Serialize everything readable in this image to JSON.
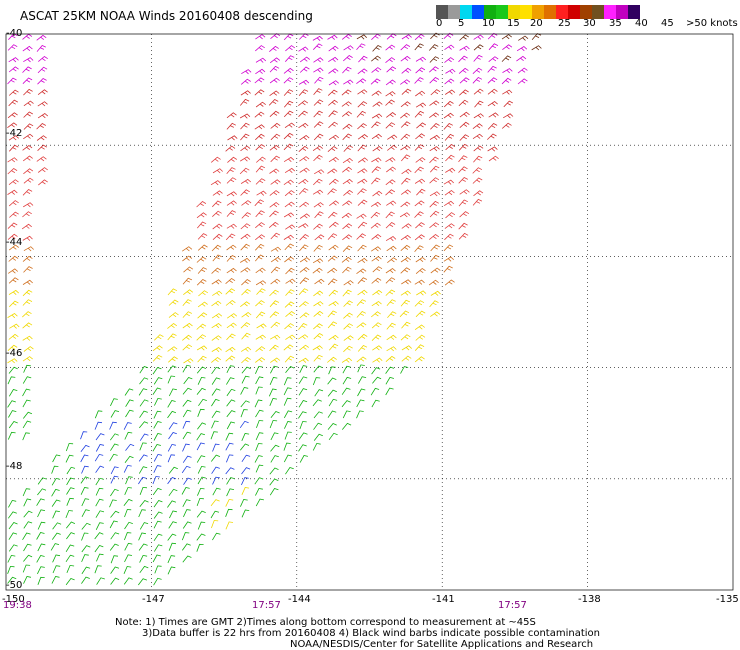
{
  "title": "ASCAT 25KM NOAA Winds 20160408 descending",
  "legend": {
    "labels": [
      "0",
      "5",
      "10",
      "15",
      "20",
      "25",
      "30",
      "35",
      "40",
      "45",
      ">50 knots"
    ],
    "colors": [
      "#555555",
      "#9a9a9a",
      "#00d8f0",
      "#0050ff",
      "#10b010",
      "#1ac81a",
      "#f0d800",
      "#ffe000",
      "#f0a000",
      "#e07000",
      "#ff2020",
      "#d00000",
      "#a04000",
      "#705020",
      "#ff20ff",
      "#c000c0",
      "#300060"
    ]
  },
  "axes": {
    "latitudes": [
      "-40",
      "-42",
      "-44",
      "-46",
      "-48",
      "-50"
    ],
    "longitudes": [
      "-150",
      "-147",
      "-144",
      "-141",
      "-138",
      "-135"
    ]
  },
  "times": [
    "19:38",
    "17:57",
    "17:57"
  ],
  "notes": [
    "Note: 1) Times are GMT 2)Times along bottom correspond to measurement at ~45S",
    "3)Data buffer is 22 hrs from 20160408 4) Black wind barbs indicate possible contamination",
    "NOAA/NESDIS/Center for Satellite Applications and Research"
  ],
  "map_data": {
    "projection": "equirectangular",
    "lon_range": [
      -150,
      -135
    ],
    "lat_range": [
      -50,
      -40
    ],
    "swaths": [
      {
        "name": "left-edge-swath",
        "polygon": [
          [
            -150,
            -40
          ],
          [
            -149.2,
            -40
          ],
          [
            -149.6,
            -47.5
          ],
          [
            -150,
            -47.5
          ]
        ]
      },
      {
        "name": "main-swath",
        "polygon": [
          [
            -144.9,
            -40
          ],
          [
            -139,
            -40
          ],
          [
            -141.6,
            -46.1
          ],
          [
            -146.8,
            -50
          ],
          [
            -150,
            -50
          ],
          [
            -150,
            -48.5
          ],
          [
            -147.2,
            -46
          ]
        ]
      }
    ],
    "wind_bands": [
      {
        "lat_from": -40,
        "lat_to": -41,
        "knots": 45,
        "color": "#d000d0"
      },
      {
        "lat_from": -41,
        "lat_to": -42.3,
        "knots": 35,
        "color": "#d03030"
      },
      {
        "lat_from": -42.3,
        "lat_to": -43.8,
        "knots": 30,
        "color": "#e04040"
      },
      {
        "lat_from": -43.8,
        "lat_to": -44.6,
        "knots": 25,
        "color": "#d07020"
      },
      {
        "lat_from": -44.6,
        "lat_to": -46.1,
        "knots": 20,
        "color": "#f0d800"
      },
      {
        "lat_from": -46.1,
        "lat_to": -50,
        "knots": 15,
        "color": "#10b010"
      }
    ]
  }
}
